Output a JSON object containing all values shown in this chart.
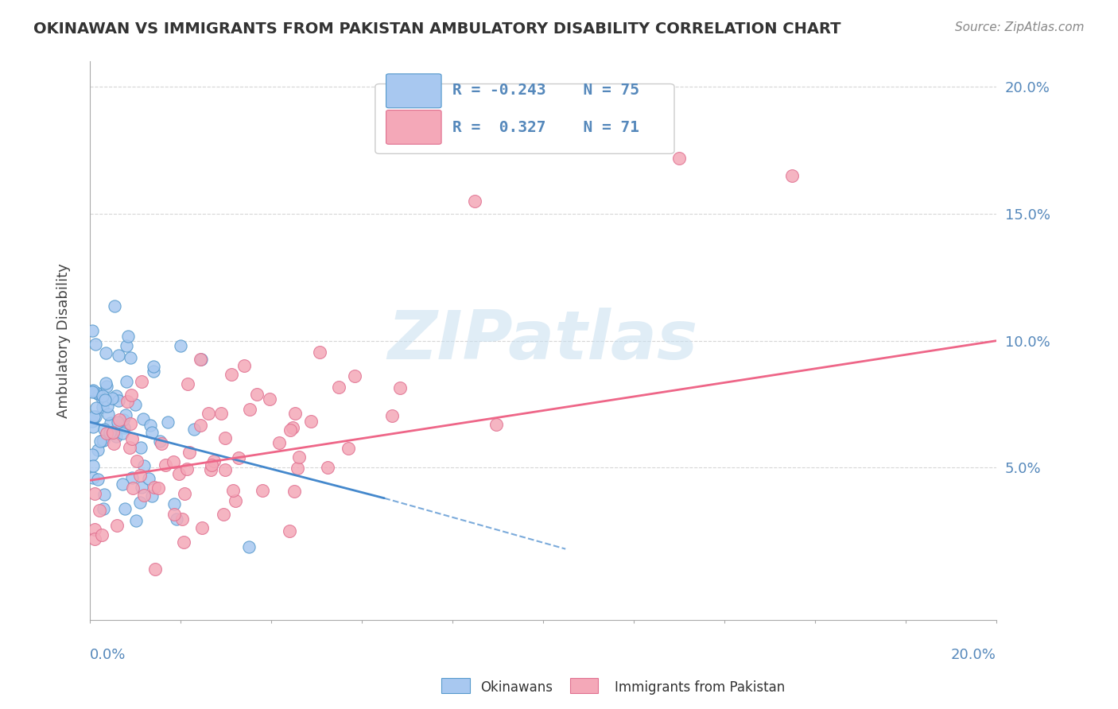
{
  "title": "OKINAWAN VS IMMIGRANTS FROM PAKISTAN AMBULATORY DISABILITY CORRELATION CHART",
  "source": "Source: ZipAtlas.com",
  "ylabel": "Ambulatory Disability",
  "legend_okinawan": "Okinawans",
  "legend_pakistan": "Immigrants from Pakistan",
  "r_okinawan": -0.243,
  "n_okinawan": 75,
  "r_pakistan": 0.327,
  "n_pakistan": 71,
  "color_okinawan": "#a8c8f0",
  "color_pakistan": "#f4a8b8",
  "color_okinawan_dark": "#5599cc",
  "color_pakistan_dark": "#e07090",
  "color_trend_okinawan": "#4488cc",
  "color_trend_pakistan": "#ee6688",
  "color_axis_label": "#5588bb",
  "watermark": "ZIPatlas",
  "background_color": "#ffffff",
  "xlim": [
    0.0,
    0.2
  ],
  "ylim": [
    -0.01,
    0.21
  ],
  "trend_ok_x0": 0.0,
  "trend_ok_x1": 0.065,
  "trend_ok_y0": 0.068,
  "trend_ok_y1": 0.038,
  "trend_ok_ext_x1": 0.105,
  "trend_ok_ext_y1": 0.018,
  "trend_pk_x0": 0.0,
  "trend_pk_x1": 0.2,
  "trend_pk_y0": 0.045,
  "trend_pk_y1": 0.1
}
